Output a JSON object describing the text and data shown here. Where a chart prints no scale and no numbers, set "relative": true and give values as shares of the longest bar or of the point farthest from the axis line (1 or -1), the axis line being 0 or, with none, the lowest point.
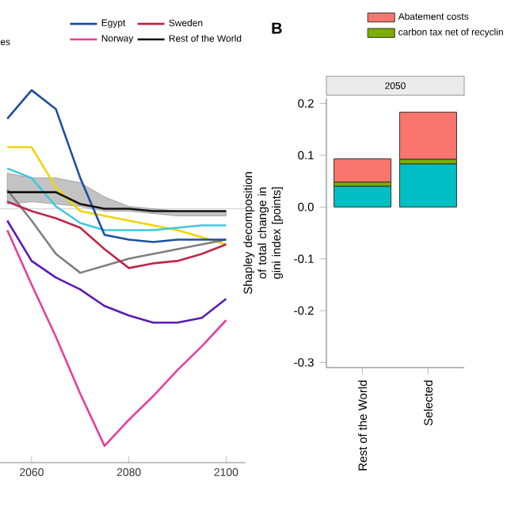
{
  "chart_data": [
    {
      "type": "line",
      "relative": true,
      "x": [
        2055,
        2060,
        2065,
        2070,
        2075,
        2080,
        2085,
        2090,
        2095,
        2100
      ],
      "xlim": [
        2053.5,
        2104
      ],
      "xticks": [
        2060,
        2080,
        2100
      ],
      "legend": "top",
      "annotations": [
        "es"
      ],
      "ref_lines": [
        {
          "axis": "y",
          "value": 0,
          "color": "#d9d9d9"
        }
      ],
      "series": [
        {
          "name": "Egypt",
          "color": "#1f4e9e",
          "values": [
            0.38,
            0.5,
            0.42,
            0.13,
            -0.11,
            -0.13,
            -0.14,
            -0.13,
            -0.13,
            -0.13
          ]
        },
        {
          "name": "Sweden",
          "color": "#c0264a",
          "values": [
            0.03,
            -0.01,
            -0.04,
            -0.08,
            -0.17,
            -0.25,
            -0.23,
            -0.22,
            -0.19,
            -0.15
          ]
        },
        {
          "name": "Norway",
          "color": "#e83e9c",
          "values": [
            -0.09,
            -0.32,
            -0.54,
            -0.78,
            -1,
            -0.89,
            -0.79,
            -0.68,
            -0.58,
            -0.47
          ]
        },
        {
          "name": "Rest of the World",
          "color": "#111111",
          "values": [
            0.07,
            0.07,
            0.07,
            0.02,
            0,
            0,
            -0.01,
            -0.01,
            -0.01,
            -0.01
          ],
          "upper": [
            0.15,
            0.13,
            0.13,
            0.11,
            0.05,
            0.01,
            0,
            -0.01,
            -0.01,
            -0.01
          ],
          "lower": [
            0.02,
            0.03,
            0.02,
            0.01,
            -0.01,
            -0.01,
            -0.02,
            -0.03,
            -0.03,
            -0.03
          ]
        },
        {
          "color": "#f2d500",
          "values": [
            0.26,
            0.26,
            0.09,
            -0.01,
            -0.03,
            -0.05,
            -0.07,
            -0.09,
            -0.12,
            -0.15
          ]
        },
        {
          "color": "#3ec8e0",
          "values": [
            0.17,
            0.13,
            0.01,
            -0.06,
            -0.09,
            -0.09,
            -0.09,
            -0.08,
            -0.07,
            -0.07
          ]
        },
        {
          "color": "#7f7f7f",
          "values": [
            0.08,
            -0.05,
            -0.19,
            -0.27,
            -0.24,
            -0.21,
            -0.19,
            -0.17,
            -0.15,
            -0.13
          ]
        },
        {
          "color": "#5a1ab8",
          "values": [
            -0.05,
            -0.22,
            -0.29,
            -0.34,
            -0.41,
            -0.45,
            -0.48,
            -0.48,
            -0.46,
            -0.38
          ]
        }
      ]
    },
    {
      "type": "bar",
      "stacked": true,
      "title": "B",
      "subtitle": "2050",
      "ylabel": "Shapley decomposition of total change in gini index [points]",
      "categories": [
        "Rest of the World",
        "Selected"
      ],
      "ylim": [
        -0.31,
        0.21
      ],
      "yticks": [
        0.2,
        0.1,
        {
          "value": 0,
          "label": "0.0"
        },
        -0.1,
        -0.2,
        -0.3
      ],
      "legend": "top right",
      "series": [
        {
          "color": "#00bfc4",
          "values": [
            0.04,
            0.083
          ]
        },
        {
          "name": "carbon tax net of recyclin",
          "color": "#7cae00",
          "values": [
            0.008,
            0.009
          ]
        },
        {
          "name": "Abatement costs",
          "color": "#f8766d",
          "values": [
            0.045,
            0.091
          ]
        }
      ]
    }
  ]
}
